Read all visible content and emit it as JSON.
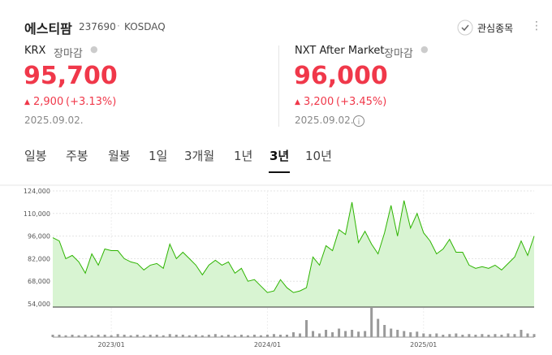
{
  "header": {
    "name": "에스티팜",
    "code": "237690",
    "market": "KOSDAQ",
    "watch": "관심종목"
  },
  "quotes": [
    {
      "venue": "KRX",
      "status": "장마감",
      "price": "95,700",
      "change": "2,900",
      "percent": "(+3.13%)",
      "date": "2025.09.02."
    },
    {
      "venue": "NXT After Market",
      "status": "장마감",
      "price": "96,000",
      "change": "3,200",
      "percent": "(+3.45%)",
      "date": "2025.09.02."
    }
  ],
  "tabs": [
    "일봉",
    "주봉",
    "월봉",
    "1일",
    "3개월",
    "1년",
    "3년",
    "10년"
  ],
  "active_tab": 6,
  "chart_data": {
    "type": "area",
    "color": "#2db400",
    "fill": "#d8f4d2",
    "grid": true,
    "categories": [
      null,
      null,
      null,
      null,
      null,
      null,
      null,
      null,
      null,
      "2023/01",
      null,
      null,
      null,
      null,
      null,
      null,
      null,
      null,
      null,
      null,
      null,
      null,
      null,
      null,
      null,
      null,
      null,
      null,
      null,
      null,
      null,
      null,
      null,
      "2024/01",
      null,
      null,
      null,
      null,
      null,
      null,
      null,
      null,
      null,
      null,
      null,
      null,
      null,
      null,
      null,
      null,
      null,
      null,
      null,
      null,
      null,
      null,
      null,
      "2025/01",
      null,
      null,
      null,
      null,
      null,
      null,
      null,
      null,
      null,
      null,
      null,
      null,
      null,
      null,
      null,
      null,
      null
    ],
    "values": [
      95000,
      93000,
      82000,
      84000,
      80000,
      73000,
      85000,
      78000,
      88000,
      87000,
      87000,
      82000,
      80000,
      79000,
      75000,
      78000,
      79000,
      76000,
      91000,
      82000,
      86000,
      82000,
      78000,
      72000,
      78000,
      81000,
      78000,
      80000,
      73000,
      76000,
      68000,
      69000,
      65000,
      61000,
      62000,
      69000,
      64000,
      61000,
      62000,
      64000,
      83000,
      78000,
      90000,
      87000,
      100000,
      97000,
      117000,
      92000,
      99000,
      91000,
      85000,
      98000,
      115000,
      96000,
      118000,
      101000,
      110000,
      98000,
      93000,
      85000,
      88000,
      94000,
      86000,
      86000,
      78000,
      76000,
      77000,
      76000,
      78000,
      75000,
      79000,
      83000,
      93000,
      84000,
      96000
    ],
    "ylim": [
      52000,
      124000
    ],
    "yticks": [
      {
        "value": 124000,
        "label": "124,000"
      },
      {
        "value": 110000,
        "label": "110,000"
      },
      {
        "value": 96000,
        "label": "96,000"
      },
      {
        "value": 82000,
        "label": "82,000"
      },
      {
        "value": 68000,
        "label": "68,000"
      },
      {
        "value": 54000,
        "label": "54,000"
      }
    ],
    "volume": {
      "color": "#9a9a9a",
      "values": [
        4,
        4,
        3,
        4,
        3,
        4,
        3,
        4,
        4,
        3,
        5,
        4,
        3,
        4,
        3,
        4,
        4,
        3,
        5,
        4,
        4,
        3,
        4,
        3,
        4,
        5,
        3,
        4,
        3,
        4,
        3,
        4,
        3,
        4,
        5,
        4,
        4,
        8,
        6,
        28,
        10,
        6,
        12,
        8,
        14,
        10,
        12,
        9,
        10,
        48,
        30,
        20,
        14,
        12,
        10,
        8,
        9,
        6,
        5,
        6,
        4,
        5,
        6,
        4,
        5,
        4,
        5,
        4,
        5,
        4,
        6,
        5,
        12,
        6,
        5
      ]
    }
  }
}
